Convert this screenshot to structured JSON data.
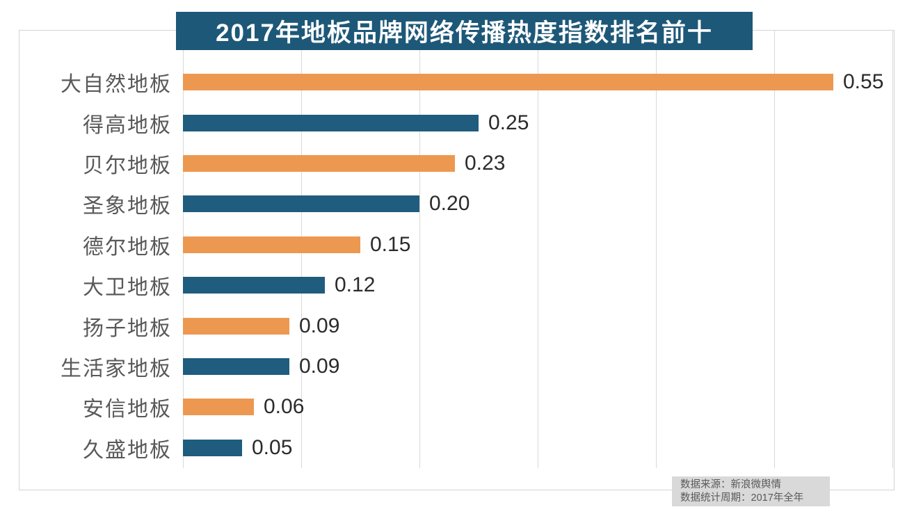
{
  "chart_data": {
    "type": "bar",
    "orientation": "horizontal",
    "title": "2017年地板品牌网络传播热度指数排名前十",
    "categories": [
      "大自然地板",
      "得高地板",
      "贝尔地板",
      "圣象地板",
      "德尔地板",
      "大卫地板",
      "扬子地板",
      "生活家地板",
      "安信地板",
      "久盛地板"
    ],
    "values": [
      0.55,
      0.25,
      0.23,
      0.2,
      0.15,
      0.12,
      0.09,
      0.09,
      0.06,
      0.05
    ],
    "value_labels": [
      "0.55",
      "0.25",
      "0.23",
      "0.20",
      "0.15",
      "0.12",
      "0.09",
      "0.09",
      "0.06",
      "0.05"
    ],
    "bar_colors": [
      "#ED9850",
      "#1F5C7E",
      "#ED9850",
      "#1F5C7E",
      "#ED9850",
      "#1F5C7E",
      "#ED9850",
      "#1F5C7E",
      "#ED9850",
      "#1F5C7E"
    ],
    "xlabel": "",
    "ylabel": "",
    "xlim": [
      0,
      0.6
    ],
    "grid_step": 0.1,
    "grid": true,
    "legend": false,
    "value_labels_shown": true,
    "axis_tick_labels_shown": false
  },
  "source": {
    "line1": "数据来源：新浪微舆情",
    "line2": "数据统计周期：2017年全年"
  },
  "colors": {
    "orange_bar": "#ED9850",
    "blue_bar": "#1F5C7E",
    "title_bg": "#1E5878",
    "title_text": "#FFFFFF",
    "gridline": "#D9D9D9",
    "border": "#D4D4D4",
    "category_label": "#595959",
    "value_label": "#2B2B2B",
    "source_bg": "#D9D9D9",
    "source_text": "#595959",
    "background": "#FFFFFF"
  }
}
